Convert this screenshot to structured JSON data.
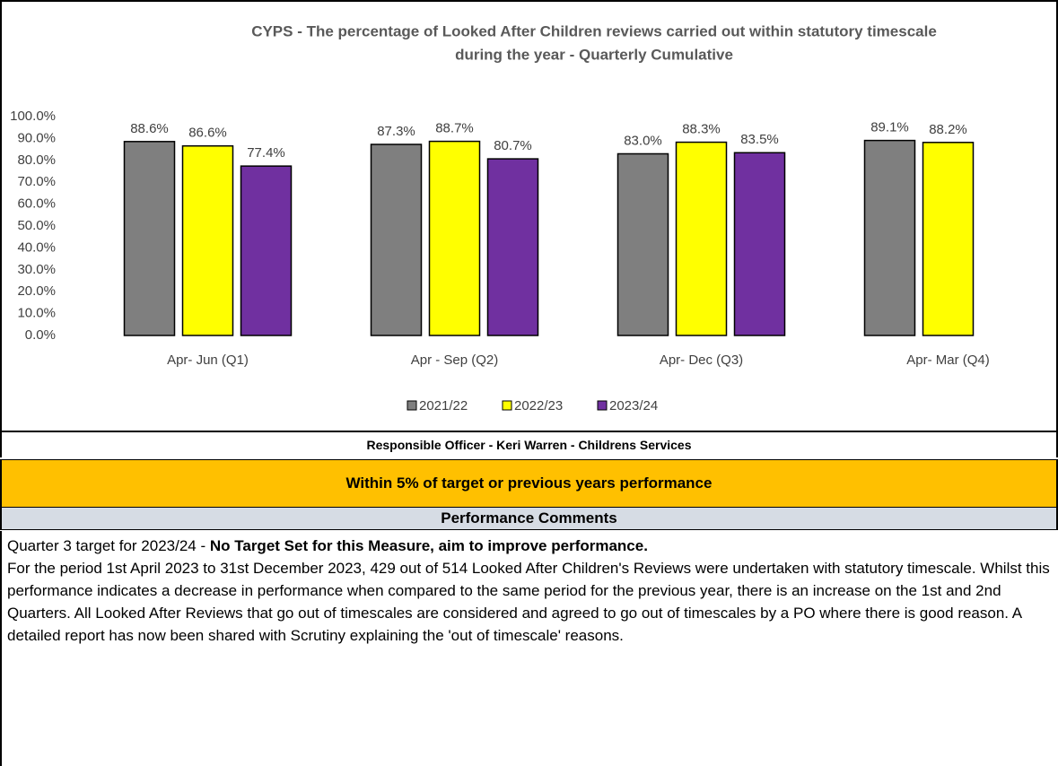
{
  "chart_data": {
    "type": "bar",
    "title": [
      "CYPS - The percentage of Looked After Children reviews carried out within statutory timescale",
      "during the year  - Quarterly Cumulative"
    ],
    "categories": [
      "Apr- Jun  (Q1)",
      "Apr - Sep  (Q2)",
      "Apr- Dec  (Q3)",
      "Apr- Mar  (Q4)"
    ],
    "series": [
      {
        "name": "2021/22",
        "color": "#7f7f7f",
        "values": [
          88.6,
          87.3,
          83.0,
          89.1
        ],
        "value_labels": [
          "88.6%",
          "87.3%",
          "83.0%",
          "89.1%"
        ]
      },
      {
        "name": "2022/23",
        "color": "#ffff00",
        "values": [
          86.6,
          88.7,
          88.3,
          88.2
        ],
        "value_labels": [
          "86.6%",
          "88.7%",
          "88.3%",
          "88.2%"
        ]
      },
      {
        "name": "2023/24",
        "color": "#7030a0",
        "values": [
          77.4,
          80.7,
          83.5,
          null
        ],
        "value_labels": [
          "77.4%",
          "80.7%",
          "83.5%",
          null
        ]
      }
    ],
    "ylim": [
      0,
      100
    ],
    "yticks": [
      {
        "value": 0,
        "label": "0.0%"
      },
      {
        "value": 10,
        "label": "10.0%"
      },
      {
        "value": 20,
        "label": "20.0%"
      },
      {
        "value": 30,
        "label": "30.0%"
      },
      {
        "value": 40,
        "label": "40.0%"
      },
      {
        "value": 50,
        "label": "50.0%"
      },
      {
        "value": 60,
        "label": "60.0%"
      },
      {
        "value": 70,
        "label": "70.0%"
      },
      {
        "value": 80,
        "label": "80.0%"
      },
      {
        "value": 90,
        "label": "90.0%"
      },
      {
        "value": 100,
        "label": "100.0%"
      }
    ],
    "legend": "bottom"
  },
  "responsible_officer": "Responsible Officer - Keri Warren - Childrens Services",
  "status": "Within 5% of target or previous years performance",
  "comments_heading": "Performance Comments",
  "comments": {
    "target_intro": "Quarter 3 target for 2023/24 -",
    "target_bold": "No Target Set for this Measure, aim to improve performance.",
    "body": "For the period 1st April 2023 to 31st December 2023, 429 out of 514 Looked After Children's Reviews were undertaken with statutory timescale. Whilst this performance indicates a decrease in performance when compared to the same period for the previous year, there is an increase on the 1st and 2nd Quarters. All Looked After Reviews that go out of timescales are considered and agreed to go out of timescales by a PO where there is good reason. A detailed report has now been shared with Scrutiny explaining the 'out of timescale' reasons."
  }
}
